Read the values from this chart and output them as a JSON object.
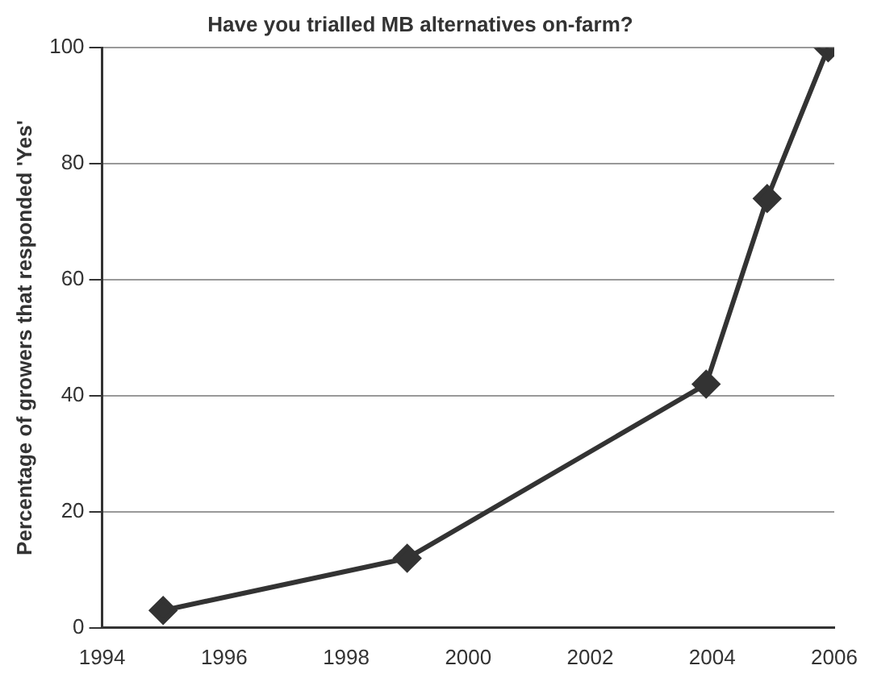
{
  "chart_data": {
    "type": "line",
    "title": "Have you trialled MB alternatives on-farm?",
    "ylabel": "Percentage of growers that responded 'Yes'",
    "x": [
      1995,
      1999,
      2003.9,
      2004.9,
      2005.9
    ],
    "series": [
      {
        "color": "#333333",
        "values": [
          3,
          12,
          42,
          74,
          100
        ]
      }
    ],
    "xlim": [
      1994,
      2006
    ],
    "xticks": [
      1994,
      1996,
      1998,
      2000,
      2002,
      2004,
      2006
    ],
    "ylim": [
      0,
      100
    ],
    "yticks": [
      0,
      20,
      40,
      60,
      80,
      100
    ],
    "grid": "y",
    "legend": false,
    "marker": "diamond",
    "line_style": "solid"
  }
}
